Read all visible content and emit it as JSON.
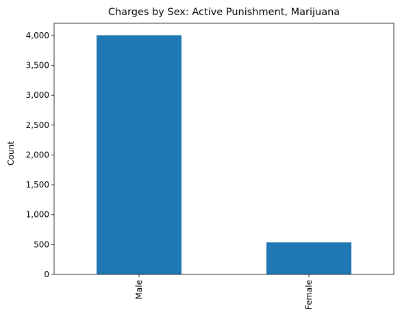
{
  "chart_data": {
    "type": "bar",
    "title": "Charges by Sex: Active Punishment, Marijuana",
    "xlabel": "",
    "ylabel": "Count",
    "categories": [
      "Male",
      "Female"
    ],
    "values": [
      4005,
      536
    ],
    "ylim": [
      0,
      4205
    ],
    "yticks": [
      0,
      500,
      1000,
      1500,
      2000,
      2500,
      3000,
      3500,
      4000
    ],
    "ytick_labels": [
      "0",
      "500",
      "1,000",
      "1,500",
      "2,000",
      "2,500",
      "3,000",
      "3,500",
      "4,000"
    ],
    "bar_color": "#1f77b4",
    "grid": false,
    "legend": false
  }
}
